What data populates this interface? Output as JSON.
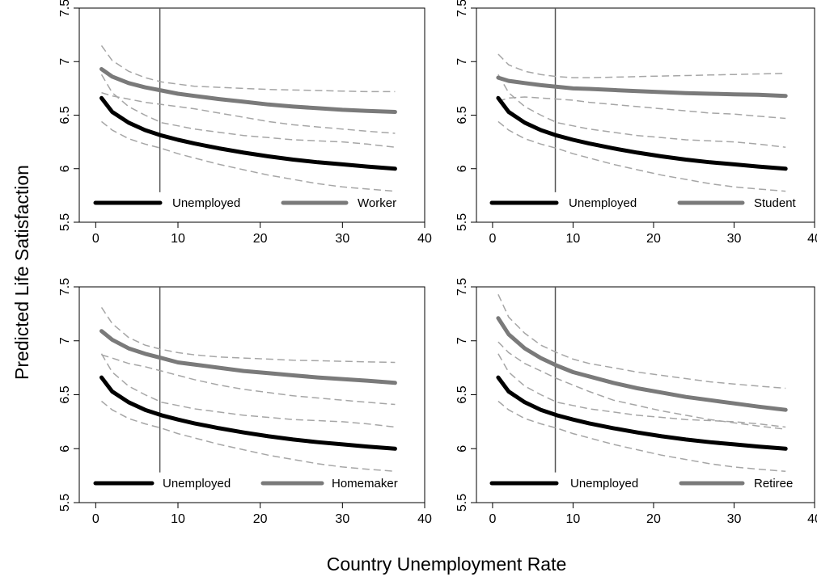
{
  "chart_data": {
    "type": "line",
    "xlabel": "Country Unemployment Rate",
    "ylabel": "Predicted Life Satisfaction",
    "xlim": [
      -2,
      40
    ],
    "ylim": [
      5.5,
      7.5
    ],
    "xticks": [
      "0",
      "10",
      "20",
      "30",
      "40"
    ],
    "yticks": [
      "5.5",
      "6",
      "6.5",
      "7",
      "7.5"
    ],
    "reference_line_x": 7.8,
    "x": [
      0.7,
      2,
      4,
      6,
      8,
      10,
      12,
      15,
      18,
      21,
      24,
      27,
      30,
      33,
      36.4
    ],
    "colors": {
      "unemployed": "#000000",
      "comparison": "#7a7a7a",
      "ci": "#a6a6a6",
      "refline": "#555555"
    },
    "panels": [
      {
        "legend": [
          "Unemployed",
          "Worker"
        ],
        "series": [
          {
            "name": "Unemployed",
            "values": [
              6.66,
              6.53,
              6.43,
              6.36,
              6.31,
              6.27,
              6.235,
              6.19,
              6.15,
              6.115,
              6.085,
              6.06,
              6.04,
              6.02,
              6.0
            ],
            "lower": [
              6.44,
              6.36,
              6.28,
              6.23,
              6.19,
              6.14,
              6.1,
              6.04,
              5.99,
              5.94,
              5.9,
              5.86,
              5.83,
              5.81,
              5.79
            ],
            "upper": [
              6.88,
              6.71,
              6.58,
              6.5,
              6.43,
              6.4,
              6.37,
              6.34,
              6.31,
              6.29,
              6.27,
              6.26,
              6.25,
              6.23,
              6.2
            ]
          },
          {
            "name": "Worker",
            "values": [
              6.93,
              6.86,
              6.8,
              6.76,
              6.73,
              6.7,
              6.68,
              6.65,
              6.625,
              6.6,
              6.58,
              6.565,
              6.55,
              6.54,
              6.53
            ],
            "lower": [
              6.71,
              6.68,
              6.65,
              6.62,
              6.6,
              6.58,
              6.56,
              6.52,
              6.48,
              6.44,
              6.41,
              6.39,
              6.37,
              6.35,
              6.33
            ],
            "upper": [
              7.15,
              7.01,
              6.91,
              6.85,
              6.81,
              6.79,
              6.77,
              6.76,
              6.75,
              6.74,
              6.735,
              6.73,
              6.725,
              6.72,
              6.72
            ]
          }
        ]
      },
      {
        "legend": [
          "Unemployed",
          "Student"
        ],
        "series": [
          {
            "name": "Unemployed",
            "values": [
              6.66,
              6.53,
              6.43,
              6.36,
              6.31,
              6.27,
              6.235,
              6.19,
              6.15,
              6.115,
              6.085,
              6.06,
              6.04,
              6.02,
              6.0
            ],
            "lower": [
              6.44,
              6.36,
              6.28,
              6.23,
              6.19,
              6.14,
              6.1,
              6.04,
              5.99,
              5.94,
              5.9,
              5.86,
              5.83,
              5.81,
              5.79
            ],
            "upper": [
              6.88,
              6.71,
              6.58,
              6.5,
              6.43,
              6.4,
              6.37,
              6.34,
              6.31,
              6.29,
              6.27,
              6.26,
              6.25,
              6.23,
              6.2
            ]
          },
          {
            "name": "Student",
            "values": [
              6.85,
              6.82,
              6.8,
              6.78,
              6.765,
              6.75,
              6.745,
              6.735,
              6.725,
              6.715,
              6.705,
              6.7,
              6.695,
              6.69,
              6.68
            ],
            "lower": [
              6.63,
              6.66,
              6.67,
              6.66,
              6.65,
              6.64,
              6.62,
              6.6,
              6.58,
              6.56,
              6.54,
              6.52,
              6.51,
              6.49,
              6.47
            ],
            "upper": [
              7.07,
              6.97,
              6.91,
              6.88,
              6.86,
              6.85,
              6.85,
              6.855,
              6.86,
              6.865,
              6.87,
              6.875,
              6.88,
              6.885,
              6.89
            ]
          }
        ]
      },
      {
        "legend": [
          "Unemployed",
          "Homemaker"
        ],
        "series": [
          {
            "name": "Unemployed",
            "values": [
              6.66,
              6.53,
              6.43,
              6.36,
              6.31,
              6.27,
              6.235,
              6.19,
              6.15,
              6.115,
              6.085,
              6.06,
              6.04,
              6.02,
              6.0
            ],
            "lower": [
              6.44,
              6.36,
              6.28,
              6.23,
              6.19,
              6.14,
              6.1,
              6.04,
              5.99,
              5.94,
              5.9,
              5.86,
              5.83,
              5.81,
              5.79
            ],
            "upper": [
              6.88,
              6.71,
              6.58,
              6.5,
              6.43,
              6.4,
              6.37,
              6.34,
              6.31,
              6.29,
              6.27,
              6.26,
              6.25,
              6.23,
              6.2
            ]
          },
          {
            "name": "Homemaker",
            "values": [
              7.09,
              7.01,
              6.93,
              6.88,
              6.84,
              6.8,
              6.78,
              6.75,
              6.72,
              6.7,
              6.68,
              6.66,
              6.645,
              6.63,
              6.61
            ],
            "lower": [
              6.87,
              6.84,
              6.79,
              6.76,
              6.72,
              6.68,
              6.64,
              6.59,
              6.55,
              6.52,
              6.49,
              6.47,
              6.45,
              6.43,
              6.41
            ],
            "upper": [
              7.31,
              7.16,
              7.03,
              6.96,
              6.92,
              6.89,
              6.87,
              6.85,
              6.84,
              6.83,
              6.82,
              6.815,
              6.81,
              6.805,
              6.8
            ]
          }
        ]
      },
      {
        "legend": [
          "Unemployed",
          "Retiree"
        ],
        "series": [
          {
            "name": "Unemployed",
            "values": [
              6.66,
              6.53,
              6.43,
              6.36,
              6.31,
              6.27,
              6.235,
              6.19,
              6.15,
              6.115,
              6.085,
              6.06,
              6.04,
              6.02,
              6.0
            ],
            "lower": [
              6.44,
              6.36,
              6.28,
              6.23,
              6.19,
              6.14,
              6.1,
              6.04,
              5.99,
              5.94,
              5.9,
              5.86,
              5.83,
              5.81,
              5.79
            ],
            "upper": [
              6.88,
              6.71,
              6.58,
              6.5,
              6.43,
              6.4,
              6.37,
              6.34,
              6.31,
              6.29,
              6.27,
              6.26,
              6.25,
              6.23,
              6.2
            ]
          },
          {
            "name": "Retiree",
            "values": [
              7.21,
              7.06,
              6.93,
              6.84,
              6.77,
              6.71,
              6.67,
              6.61,
              6.56,
              6.52,
              6.48,
              6.45,
              6.42,
              6.39,
              6.36
            ],
            "lower": [
              6.99,
              6.89,
              6.79,
              6.72,
              6.65,
              6.59,
              6.53,
              6.45,
              6.4,
              6.35,
              6.31,
              6.27,
              6.24,
              6.21,
              6.18
            ],
            "upper": [
              7.43,
              7.22,
              7.07,
              6.96,
              6.89,
              6.83,
              6.79,
              6.75,
              6.71,
              6.68,
              6.65,
              6.62,
              6.6,
              6.58,
              6.56
            ]
          }
        ]
      }
    ]
  }
}
